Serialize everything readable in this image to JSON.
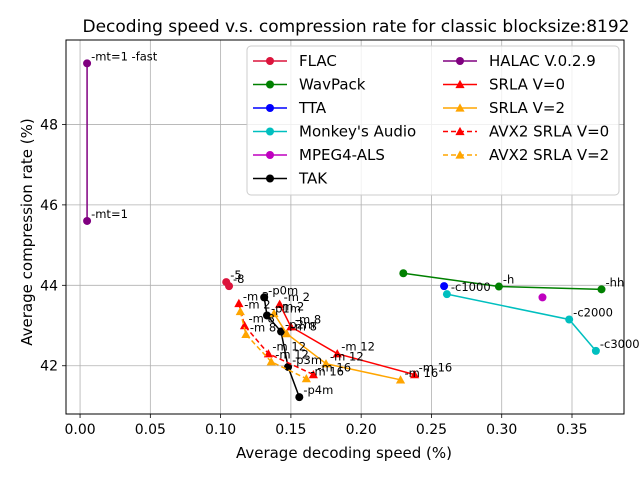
{
  "chart_data": {
    "type": "line",
    "title": "Decoding speed v.s. compression rate for classic blocksize:8192",
    "xlabel": "Average decoding speed (%)",
    "ylabel": "Average compression rate (%)",
    "xlim": [
      -0.01,
      0.387
    ],
    "ylim": [
      40.8,
      50.1
    ],
    "xticks": [
      0.0,
      0.05,
      0.1,
      0.15,
      0.2,
      0.25,
      0.3,
      0.35
    ],
    "xtick_labels": [
      "0.00",
      "0.05",
      "0.10",
      "0.15",
      "0.20",
      "0.25",
      "0.30",
      "0.35"
    ],
    "yticks": [
      42,
      44,
      46,
      48
    ],
    "ytick_labels": [
      "42",
      "44",
      "46",
      "48"
    ],
    "grid": true,
    "legend_position": "top-right",
    "series": [
      {
        "name": "FLAC",
        "color": "#dc143c",
        "marker": "circle",
        "dash": false,
        "points": [
          [
            0.104,
            44.08
          ],
          [
            0.106,
            43.98
          ]
        ],
        "labels": [
          "-5",
          "-8"
        ]
      },
      {
        "name": "WavPack",
        "color": "#008000",
        "marker": "circle",
        "dash": false,
        "points": [
          [
            0.23,
            44.3
          ],
          [
            0.298,
            43.97
          ],
          [
            0.371,
            43.9
          ]
        ],
        "labels": [
          "",
          "-h",
          "-hh"
        ]
      },
      {
        "name": "TTA",
        "color": "#0000ff",
        "marker": "circle",
        "dash": false,
        "points": [
          [
            0.259,
            43.98
          ]
        ],
        "labels": [
          ""
        ]
      },
      {
        "name": "Monkey's Audio",
        "color": "#00bfbf",
        "marker": "circle",
        "dash": false,
        "points": [
          [
            0.261,
            43.78
          ],
          [
            0.348,
            43.15
          ],
          [
            0.367,
            42.37
          ]
        ],
        "labels": [
          "-c1000",
          "-c2000",
          "-c3000"
        ]
      },
      {
        "name": "MPEG4-ALS",
        "color": "#bf00bf",
        "marker": "circle",
        "dash": false,
        "points": [
          [
            0.329,
            43.7
          ]
        ],
        "labels": [
          ""
        ]
      },
      {
        "name": "TAK",
        "color": "#000000",
        "marker": "circle",
        "dash": false,
        "points": [
          [
            0.131,
            43.7
          ],
          [
            0.133,
            43.25
          ],
          [
            0.143,
            42.85
          ],
          [
            0.148,
            41.97
          ],
          [
            0.156,
            41.22
          ]
        ],
        "labels": [
          "-p0m",
          "-p1m",
          "-p2m",
          "-p3m",
          "-p4m"
        ]
      },
      {
        "name": "HALAC V.0.2.9",
        "color": "#800080",
        "marker": "circle",
        "dash": false,
        "points": [
          [
            0.005,
            49.52
          ],
          [
            0.005,
            45.6
          ]
        ],
        "labels": [
          "-mt=1 -fast",
          "-mt=1"
        ]
      },
      {
        "name": "SRLA V=0",
        "color": "#ff0000",
        "marker": "triangle",
        "dash": false,
        "points": [
          [
            0.142,
            43.53
          ],
          [
            0.15,
            42.97
          ],
          [
            0.183,
            42.3
          ],
          [
            0.238,
            41.78
          ]
        ],
        "labels": [
          "-m 2",
          "-m 8",
          "-m 12",
          "-m 16"
        ]
      },
      {
        "name": "SRLA V=2",
        "color": "#ffa500",
        "marker": "triangle",
        "dash": false,
        "points": [
          [
            0.138,
            43.3
          ],
          [
            0.147,
            42.8
          ],
          [
            0.175,
            42.05
          ],
          [
            0.228,
            41.65
          ]
        ],
        "labels": [
          "-m 2",
          "-m 8",
          "-m 12",
          "-m 16"
        ]
      },
      {
        "name": "AVX2 SRLA V=0",
        "color": "#ff0000",
        "marker": "triangle",
        "dash": true,
        "points": [
          [
            0.113,
            43.55
          ],
          [
            0.117,
            43.0
          ],
          [
            0.134,
            42.3
          ],
          [
            0.166,
            41.78
          ]
        ],
        "labels": [
          "-m 2",
          "-m 8",
          "-m 12",
          "-m 16"
        ]
      },
      {
        "name": "AVX2 SRLA V=2",
        "color": "#ffa500",
        "marker": "triangle",
        "dash": true,
        "points": [
          [
            0.114,
            43.35
          ],
          [
            0.118,
            42.78
          ],
          [
            0.136,
            42.1
          ],
          [
            0.161,
            41.68
          ]
        ],
        "labels": [
          "-m 2",
          "-m 8",
          "-m 12",
          "-m 16"
        ]
      }
    ]
  }
}
